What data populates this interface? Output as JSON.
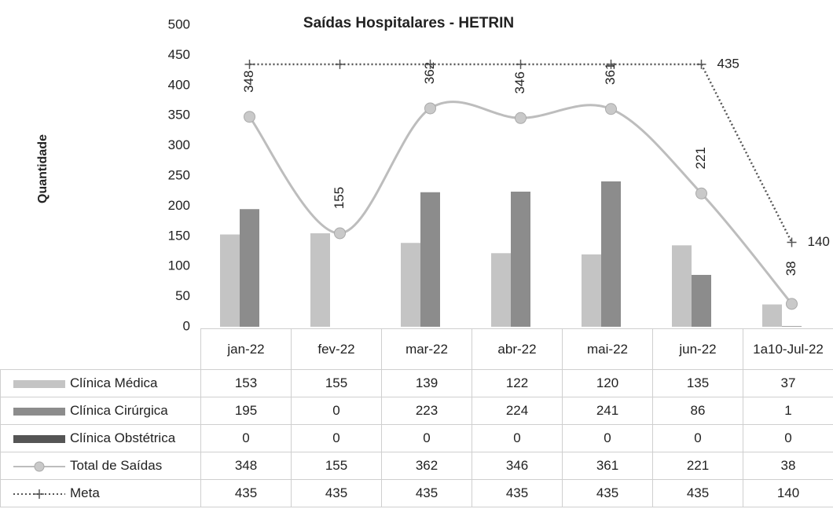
{
  "chart_data": {
    "type": "bar",
    "title": "Saídas Hospitalares - HETRIN",
    "y_label": "Quantidade",
    "categories": [
      "jan-22",
      "fev-22",
      "mar-22",
      "abr-22",
      "mai-22",
      "jun-22",
      "1a10-Jul-22"
    ],
    "ylim": [
      0,
      500
    ],
    "yticks": [
      0,
      50,
      100,
      150,
      200,
      250,
      300,
      350,
      400,
      450,
      500
    ],
    "grid": false,
    "data_table": true,
    "series": [
      {
        "name": "Clínica Médica",
        "type": "bar",
        "color": "#c4c4c4",
        "values": [
          153,
          155,
          139,
          122,
          120,
          135,
          37
        ]
      },
      {
        "name": "Clínica Cirúrgica",
        "type": "bar",
        "color": "#8c8c8c",
        "values": [
          195,
          0,
          223,
          224,
          241,
          86,
          1
        ]
      },
      {
        "name": "Clínica Obstétrica",
        "type": "bar",
        "color": "#555555",
        "values": [
          0,
          0,
          0,
          0,
          0,
          0,
          0
        ]
      },
      {
        "name": "Total de Saídas",
        "type": "line",
        "color": "#bdbdbd",
        "smooth": true,
        "marker": "circle",
        "labels": true,
        "values": [
          348,
          155,
          362,
          346,
          361,
          221,
          38
        ]
      },
      {
        "name": "Meta",
        "type": "line",
        "color": "#555555",
        "dash": "dotted",
        "marker": "plus",
        "labels": [
          5,
          6
        ],
        "values": [
          435,
          435,
          435,
          435,
          435,
          435,
          140
        ]
      }
    ]
  }
}
